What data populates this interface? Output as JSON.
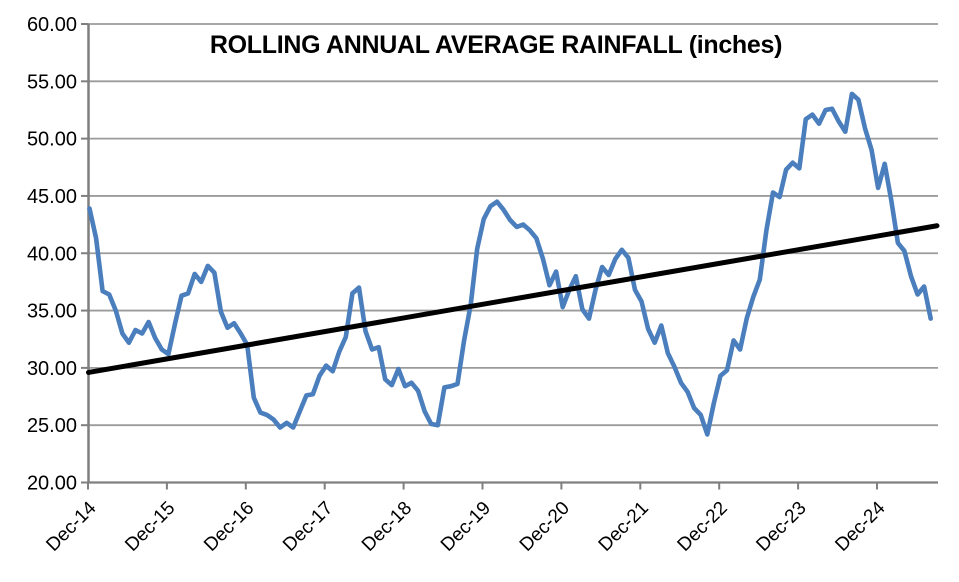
{
  "chart_data": {
    "type": "line",
    "title": "ROLLING ANNUAL AVERAGE RAINFALL (inches)",
    "xlabel": "",
    "ylabel": "",
    "ylim": [
      20,
      60
    ],
    "grid": true,
    "legend_position": "none",
    "y_ticks": [
      20,
      25,
      30,
      35,
      40,
      45,
      50,
      55,
      60
    ],
    "y_tick_labels": [
      "20.00",
      "25.00",
      "30.00",
      "35.00",
      "40.00",
      "45.00",
      "50.00",
      "55.00",
      "60.00"
    ],
    "x_tick_labels": [
      "Dec-14",
      "Dec-15",
      "Dec-16",
      "Dec-17",
      "Dec-18",
      "Dec-19",
      "Dec-20",
      "Dec-21",
      "Dec-22",
      "Dec-23",
      "Dec-24"
    ],
    "x_start_month": "Dec-14",
    "x_end_month": "Aug-25",
    "x_frequency": "monthly",
    "series": [
      {
        "name": "rolling-annual-average-rainfall",
        "color": "#4a7ebd",
        "values": [
          43.9,
          41.3,
          36.7,
          36.4,
          35.0,
          33.0,
          32.2,
          33.3,
          33.0,
          34.0,
          32.6,
          31.6,
          31.2,
          33.8,
          36.3,
          36.5,
          38.2,
          37.5,
          38.9,
          38.3,
          34.9,
          33.5,
          33.9,
          33.0,
          32.0,
          27.4,
          26.1,
          25.9,
          25.5,
          24.8,
          25.2,
          24.8,
          26.2,
          27.6,
          27.7,
          29.3,
          30.2,
          29.7,
          31.4,
          32.7,
          36.5,
          37.0,
          33.2,
          31.6,
          31.8,
          29.0,
          28.5,
          29.9,
          28.4,
          28.7,
          28.0,
          26.2,
          25.1,
          25.0,
          28.3,
          28.4,
          28.6,
          32.4,
          35.5,
          40.4,
          43.0,
          44.1,
          44.5,
          43.8,
          42.9,
          42.3,
          42.5,
          42.0,
          41.3,
          39.5,
          37.2,
          38.4,
          35.3,
          36.8,
          38.0,
          35.1,
          34.3,
          36.8,
          38.8,
          38.1,
          39.5,
          40.3,
          39.6,
          36.8,
          35.8,
          33.4,
          32.2,
          33.7,
          31.3,
          30.1,
          28.7,
          27.9,
          26.5,
          25.9,
          24.2,
          26.9,
          29.3,
          29.8,
          32.4,
          31.6,
          34.3,
          36.2,
          37.7,
          42.0,
          45.3,
          44.9,
          47.3,
          47.9,
          47.4,
          51.7,
          52.1,
          51.3,
          52.5,
          52.6,
          51.5,
          50.6,
          53.9,
          53.4,
          50.9,
          49.0,
          45.7,
          47.8,
          44.6,
          40.9,
          40.2,
          38.0,
          36.4,
          37.1,
          34.3
        ]
      },
      {
        "name": "linear-trend",
        "color": "#000000",
        "trend_start_value": 29.6,
        "trend_end_value": 42.4
      }
    ],
    "colors": {
      "line_blue": "#4a7ebd",
      "trend_black": "#000000",
      "gridline_gray": "#9b9b9b",
      "axis_gray": "#7f7f7f",
      "text_black": "#000000",
      "background": "#ffffff"
    }
  }
}
